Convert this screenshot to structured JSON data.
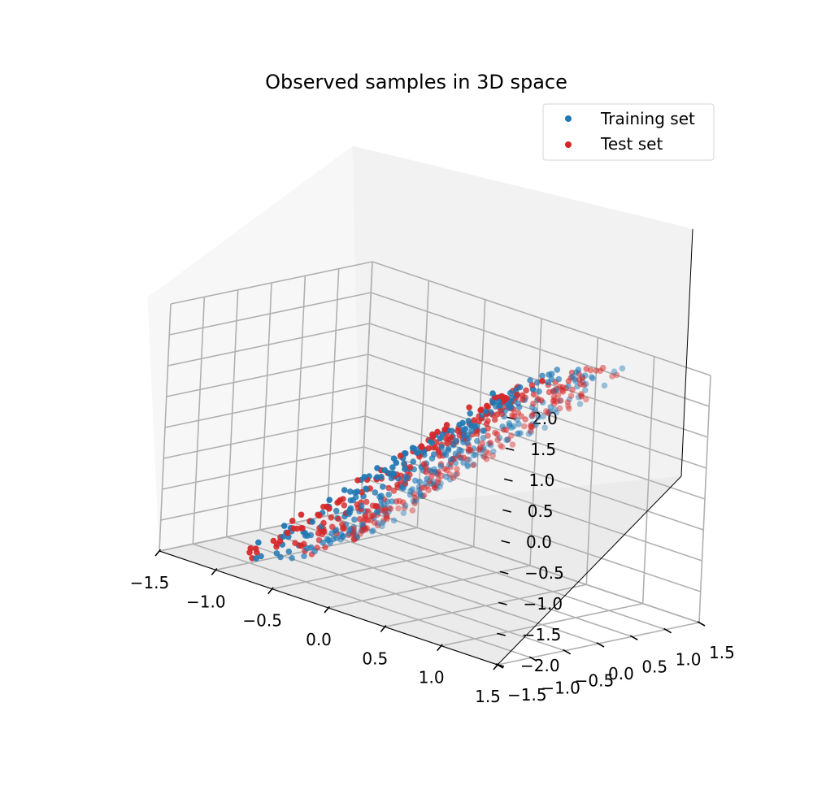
{
  "chart_data": {
    "type": "scatter3d",
    "title": "Observed samples in 3D space",
    "xlabel": "",
    "ylabel": "",
    "zlabel": "",
    "xlim": [
      -1.5,
      1.5
    ],
    "ylim": [
      -1.5,
      1.5
    ],
    "zlim": [
      -2.0,
      2.0
    ],
    "x_ticks": [
      "−1.5",
      "−1.0",
      "−0.5",
      "0.0",
      "0.5",
      "1.0",
      "1.5"
    ],
    "y_ticks": [
      "−1.5",
      "−1.0",
      "−0.5",
      "0.0",
      "0.5",
      "1.0",
      "1.5"
    ],
    "z_ticks": [
      "−2.0",
      "−1.5",
      "−1.0",
      "−0.5",
      "0.0",
      "0.5",
      "1.0",
      "1.5",
      "2.0"
    ],
    "grid": true,
    "legend_position": "top-right",
    "shape": "ribbon surface z = 2·x (approx.), x in [-1.1, 1.1], y in [-1.0, 1.0]",
    "series": [
      {
        "name": "Training set",
        "color": "#1f77b4",
        "points": [
          [
            -1.0,
            -0.9,
            -1.95
          ],
          [
            -0.95,
            -0.5,
            -1.9
          ],
          [
            -0.9,
            0.0,
            -1.8
          ],
          [
            -0.85,
            0.4,
            -1.7
          ],
          [
            -0.8,
            0.8,
            -1.6
          ],
          [
            -0.7,
            -0.7,
            -1.4
          ],
          [
            -0.6,
            0.2,
            -1.2
          ],
          [
            -0.5,
            0.7,
            -1.0
          ],
          [
            -0.45,
            -0.3,
            -0.9
          ],
          [
            -0.3,
            0.5,
            -0.6
          ],
          [
            -0.2,
            -0.8,
            -0.4
          ],
          [
            -0.1,
            0.1,
            -0.2
          ],
          [
            0.0,
            0.6,
            0.0
          ],
          [
            0.1,
            -0.5,
            0.2
          ],
          [
            0.2,
            0.9,
            0.4
          ],
          [
            0.3,
            -0.1,
            0.6
          ],
          [
            0.4,
            0.4,
            0.8
          ],
          [
            0.5,
            -0.7,
            1.0
          ],
          [
            0.6,
            0.8,
            1.2
          ],
          [
            0.7,
            0.0,
            1.4
          ],
          [
            0.8,
            -0.4,
            1.6
          ],
          [
            0.9,
            0.5,
            1.8
          ],
          [
            1.0,
            -0.9,
            1.95
          ],
          [
            1.05,
            0.2,
            2.0
          ]
        ]
      },
      {
        "name": "Test set",
        "color": "#d62728",
        "points": [
          [
            -1.0,
            0.6,
            -1.95
          ],
          [
            -0.9,
            -0.4,
            -1.8
          ],
          [
            -0.8,
            0.2,
            -1.6
          ],
          [
            -0.7,
            0.9,
            -1.4
          ],
          [
            -0.6,
            -0.6,
            -1.2
          ],
          [
            -0.5,
            0.0,
            -1.0
          ],
          [
            -0.4,
            0.7,
            -0.8
          ],
          [
            -0.3,
            -0.9,
            -0.6
          ],
          [
            -0.2,
            0.3,
            -0.4
          ],
          [
            -0.1,
            -0.2,
            -0.2
          ],
          [
            0.0,
            -0.7,
            0.0
          ],
          [
            0.1,
            0.5,
            0.2
          ],
          [
            0.2,
            -0.3,
            0.4
          ],
          [
            0.3,
            0.8,
            0.6
          ],
          [
            0.4,
            -0.8,
            0.8
          ],
          [
            0.5,
            0.3,
            1.0
          ],
          [
            0.6,
            -0.2,
            1.2
          ],
          [
            0.7,
            0.6,
            1.4
          ],
          [
            0.8,
            -0.9,
            1.6
          ],
          [
            0.9,
            0.1,
            1.8
          ],
          [
            1.0,
            0.7,
            1.95
          ],
          [
            1.05,
            -0.4,
            2.0
          ]
        ]
      }
    ]
  }
}
